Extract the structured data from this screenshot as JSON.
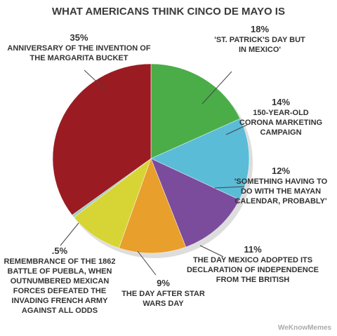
{
  "chart_data": {
    "type": "pie",
    "title": "WHAT AMERICANS THINK CINCO DE MAYO IS",
    "categories": [
      "'ST. PATRICK'S DAY BUT IN MEXICO'",
      "150-YEAR-OLD CORONA MARKETING CAMPAIGN",
      "'SOMETHING HAVING TO DO WITH THE MAYAN CALENDAR, PROBABLY'",
      "THE DAY MEXICO ADOPTED ITS DECLARATION OF INDEPENDENCE FROM THE BRITISH",
      "THE DAY AFTER STAR WARS DAY",
      "REMEMBRANCE OF THE 1862 BATTLE OF PUEBLA, WHEN OUTNUMBERED MEXICAN FORCES DEFEATED THE INVADING FRENCH ARMY AGAINST ALL ODDS",
      "ANNIVERSARY OF THE INVENTION OF THE MARGARITA BUCKET"
    ],
    "values": [
      18,
      14,
      12,
      11,
      9,
      0.5,
      35
    ],
    "value_labels": [
      "18%",
      "14%",
      "12%",
      "11%",
      "9%",
      ".5%",
      "35%"
    ],
    "colors": [
      "#4aad48",
      "#5bbcd7",
      "#7b4c9c",
      "#e89f2c",
      "#d7d536",
      "#a3cfc0",
      "#9a1c22"
    ],
    "watermark": "WeKnowMemes"
  }
}
